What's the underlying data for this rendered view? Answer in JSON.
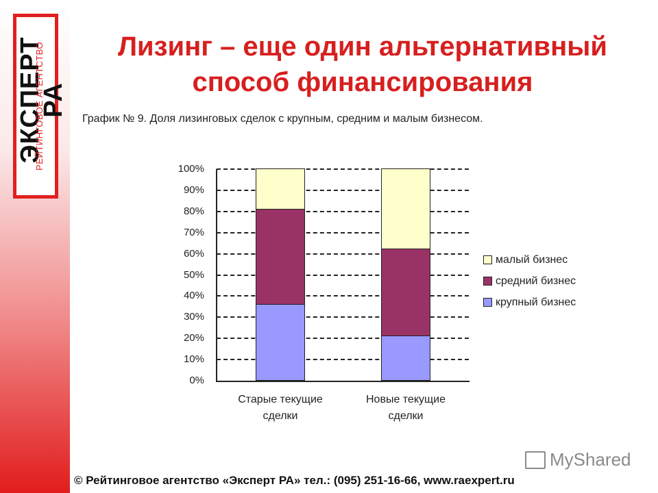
{
  "branding": {
    "logo_main": "ЭКСПЕРТ РА",
    "logo_sub": "РЕЙТИНГОВОЕ АГЕНТСТВО"
  },
  "slide": {
    "title_line1": "Лизинг – еще один альтернативный",
    "title_line2": "способ финансирования",
    "subtitle": "График № 9. Доля лизинговых сделок с крупным, средним и малым бизнесом."
  },
  "footer": {
    "text": "©  Рейтинговое агентство «Эксперт РА» тел.: (095) 251-16-66,  www.raexpert.ru"
  },
  "watermark": {
    "text": "MyShared"
  },
  "chart_data": {
    "type": "bar",
    "stacked": true,
    "percent": true,
    "title": "График № 9. Доля лизинговых сделок с крупным, средним и малым бизнесом.",
    "categories": [
      "Старые текущие сделки",
      "Новые текущие сделки"
    ],
    "category_lines": [
      [
        "Старые текущие",
        "сделки"
      ],
      [
        "Новые текущие",
        "сделки"
      ]
    ],
    "series": [
      {
        "name": "крупный бизнес",
        "color": "#9999ff",
        "values": [
          36,
          21
        ]
      },
      {
        "name": "средний бизнес",
        "color": "#993366",
        "values": [
          45,
          41
        ]
      },
      {
        "name": "малый бизнес",
        "color": "#ffffcc",
        "values": [
          19,
          38
        ]
      }
    ],
    "yticks": [
      "100%",
      "90%",
      "80%",
      "70%",
      "60%",
      "50%",
      "40%",
      "30%",
      "20%",
      "10%",
      "0%"
    ],
    "ylim": [
      0,
      100
    ],
    "grid": "dashed",
    "legend_position": "right",
    "legend": [
      "малый бизнес",
      "средний бизнес",
      "крупный бизнес"
    ]
  }
}
